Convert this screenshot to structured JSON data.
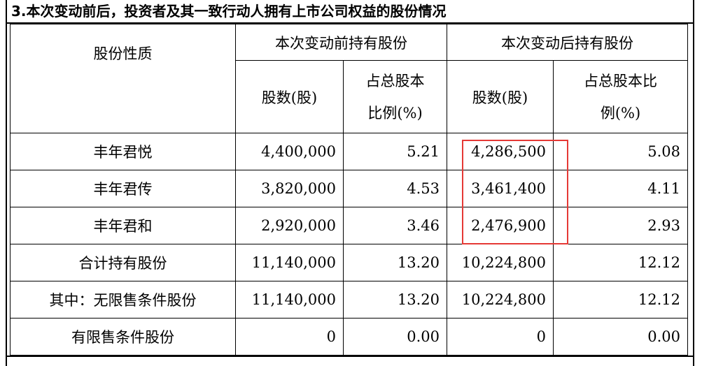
{
  "title": "3.本次变动前后，投资者及其一致行动人拥有上市公司权益的股份情况",
  "headers": {
    "nature": "股份性质",
    "before_group": "本次变动前持有股份",
    "after_group": "本次变动后持有股份",
    "before_shares": "股数(股)",
    "before_ratio_l1": "占总股本",
    "before_ratio_l2": "比例(%)",
    "after_shares": "股数(股)",
    "after_ratio_l1": "占总股本比",
    "after_ratio_l2": "例(%)"
  },
  "rows": [
    {
      "name": "丰年君悦",
      "before_shares": "4,400,000",
      "before_ratio": "5.21",
      "after_shares": "4,286,500",
      "after_ratio": "5.08"
    },
    {
      "name": "丰年君传",
      "before_shares": "3,820,000",
      "before_ratio": "4.53",
      "after_shares": "3,461,400",
      "after_ratio": "4.11"
    },
    {
      "name": "丰年君和",
      "before_shares": "2,920,000",
      "before_ratio": "3.46",
      "after_shares": "2,476,900",
      "after_ratio": "2.93"
    },
    {
      "name": "合计持有股份",
      "before_shares": "11,140,000",
      "before_ratio": "13.20",
      "after_shares": "10,224,800",
      "after_ratio": "12.12"
    },
    {
      "name": "其中：无限售条件股份",
      "before_shares": "11,140,000",
      "before_ratio": "13.20",
      "after_shares": "10,224,800",
      "after_ratio": "12.12"
    },
    {
      "name": "有限售条件股份",
      "before_shares": "0",
      "before_ratio": "0.00",
      "after_shares": "0",
      "after_ratio": "0.00"
    }
  ],
  "colors": {
    "highlight_box": "#e53935",
    "border": "#000000"
  }
}
